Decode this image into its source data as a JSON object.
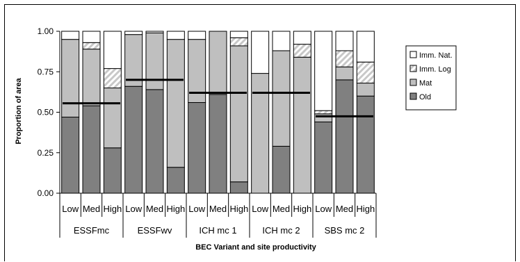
{
  "chart_data": {
    "type": "bar",
    "stacked": true,
    "normalized": true,
    "xlabel": "BEC Variant and site productivity",
    "ylabel": "Proportion of area",
    "ylim": [
      0,
      1
    ],
    "yticks": [
      "0.00",
      "0.25",
      "0.50",
      "0.75",
      "1.00"
    ],
    "groups": [
      "ESSFmc",
      "ESSFwv",
      "ICH mc 1",
      "ICH mc 2",
      "SBS mc 2"
    ],
    "categories": [
      "Low",
      "Med",
      "High",
      "Low",
      "Med",
      "High",
      "Low",
      "Med",
      "High",
      "Low",
      "Med",
      "High",
      "Low",
      "Med",
      "High"
    ],
    "legend_position": "right",
    "series": [
      {
        "name": "Old",
        "color": "#808080",
        "values": [
          0.47,
          0.54,
          0.28,
          0.66,
          0.64,
          0.16,
          0.56,
          0.61,
          0.07,
          0.0,
          0.29,
          0.0,
          0.44,
          0.7,
          0.6
        ]
      },
      {
        "name": "Mat",
        "color": "#bfbfbf",
        "values": [
          0.48,
          0.35,
          0.37,
          0.32,
          0.35,
          0.79,
          0.39,
          0.39,
          0.84,
          0.74,
          0.59,
          0.84,
          0.05,
          0.08,
          0.08
        ]
      },
      {
        "name": "Imm. Log",
        "color": "#d9d9d9",
        "hatched": true,
        "values": [
          0.0,
          0.04,
          0.12,
          0.0,
          0.0,
          0.0,
          0.0,
          0.0,
          0.05,
          0.0,
          0.0,
          0.08,
          0.02,
          0.1,
          0.13
        ]
      },
      {
        "name": "Imm. Nat.",
        "color": "#ffffff",
        "values": [
          0.05,
          0.07,
          0.23,
          0.02,
          0.01,
          0.05,
          0.05,
          0.0,
          0.04,
          0.26,
          0.12,
          0.08,
          0.49,
          0.12,
          0.19
        ]
      }
    ],
    "reference_lines": [
      0.555,
      0.7,
      0.62,
      0.62,
      0.475
    ],
    "legend_order": [
      "Imm. Nat.",
      "Imm. Log",
      "Mat",
      "Old"
    ]
  }
}
